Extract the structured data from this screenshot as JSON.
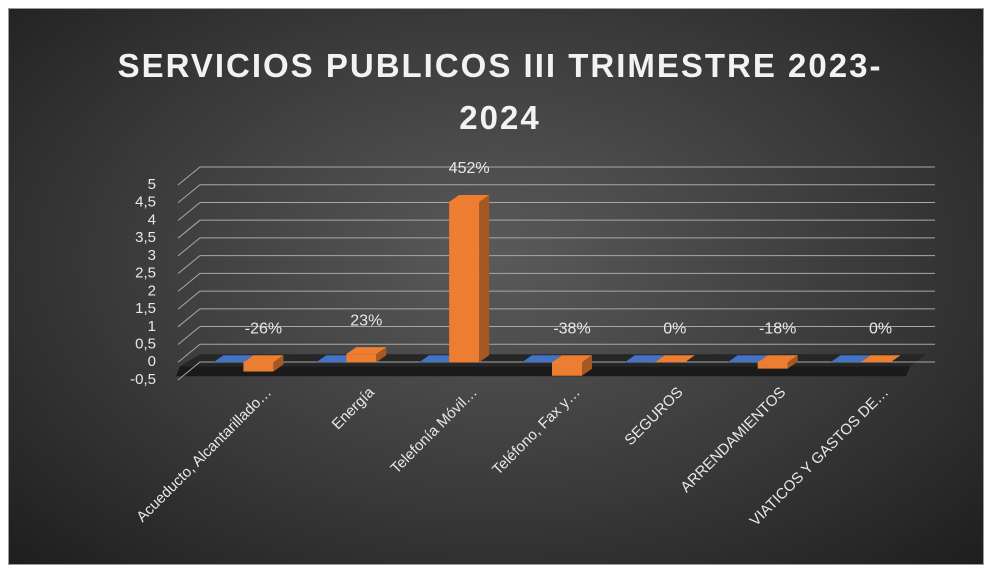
{
  "chart_data": {
    "type": "bar3d",
    "title": "SERVICIOS PUBLICOS III TRIMESTRE 2023-2024",
    "categories": [
      "Acueducto, Alcantarillado…",
      "Energía",
      "Telefonía Móvil…",
      "Teléfono, Fax y…",
      "SEGUROS",
      "ARRENDAMIENTOS",
      "VIATICOS Y GASTOS DE…"
    ],
    "series": [
      {
        "color": "#4472c4",
        "values": [
          0,
          0,
          0,
          0,
          0,
          0,
          0
        ]
      },
      {
        "color": "#ed7d31",
        "values": [
          -0.26,
          0.23,
          4.52,
          -0.38,
          0,
          -0.18,
          0
        ],
        "value_labels": [
          "-26%",
          "23%",
          "452%",
          "-38%",
          "0%",
          "-18%",
          "0%"
        ]
      }
    ],
    "ylim": [
      -0.5,
      5
    ],
    "yticks": [
      {
        "value": -0.5,
        "label": "-0,5"
      },
      0,
      {
        "value": 0.5,
        "label": "0,5"
      },
      1,
      {
        "value": 1.5,
        "label": "1,5"
      },
      2,
      {
        "value": 2.5,
        "label": "2,5"
      },
      3,
      {
        "value": 3.5,
        "label": "3,5"
      },
      4,
      {
        "value": 4.5,
        "label": "4,5"
      },
      5
    ],
    "grid": true
  }
}
